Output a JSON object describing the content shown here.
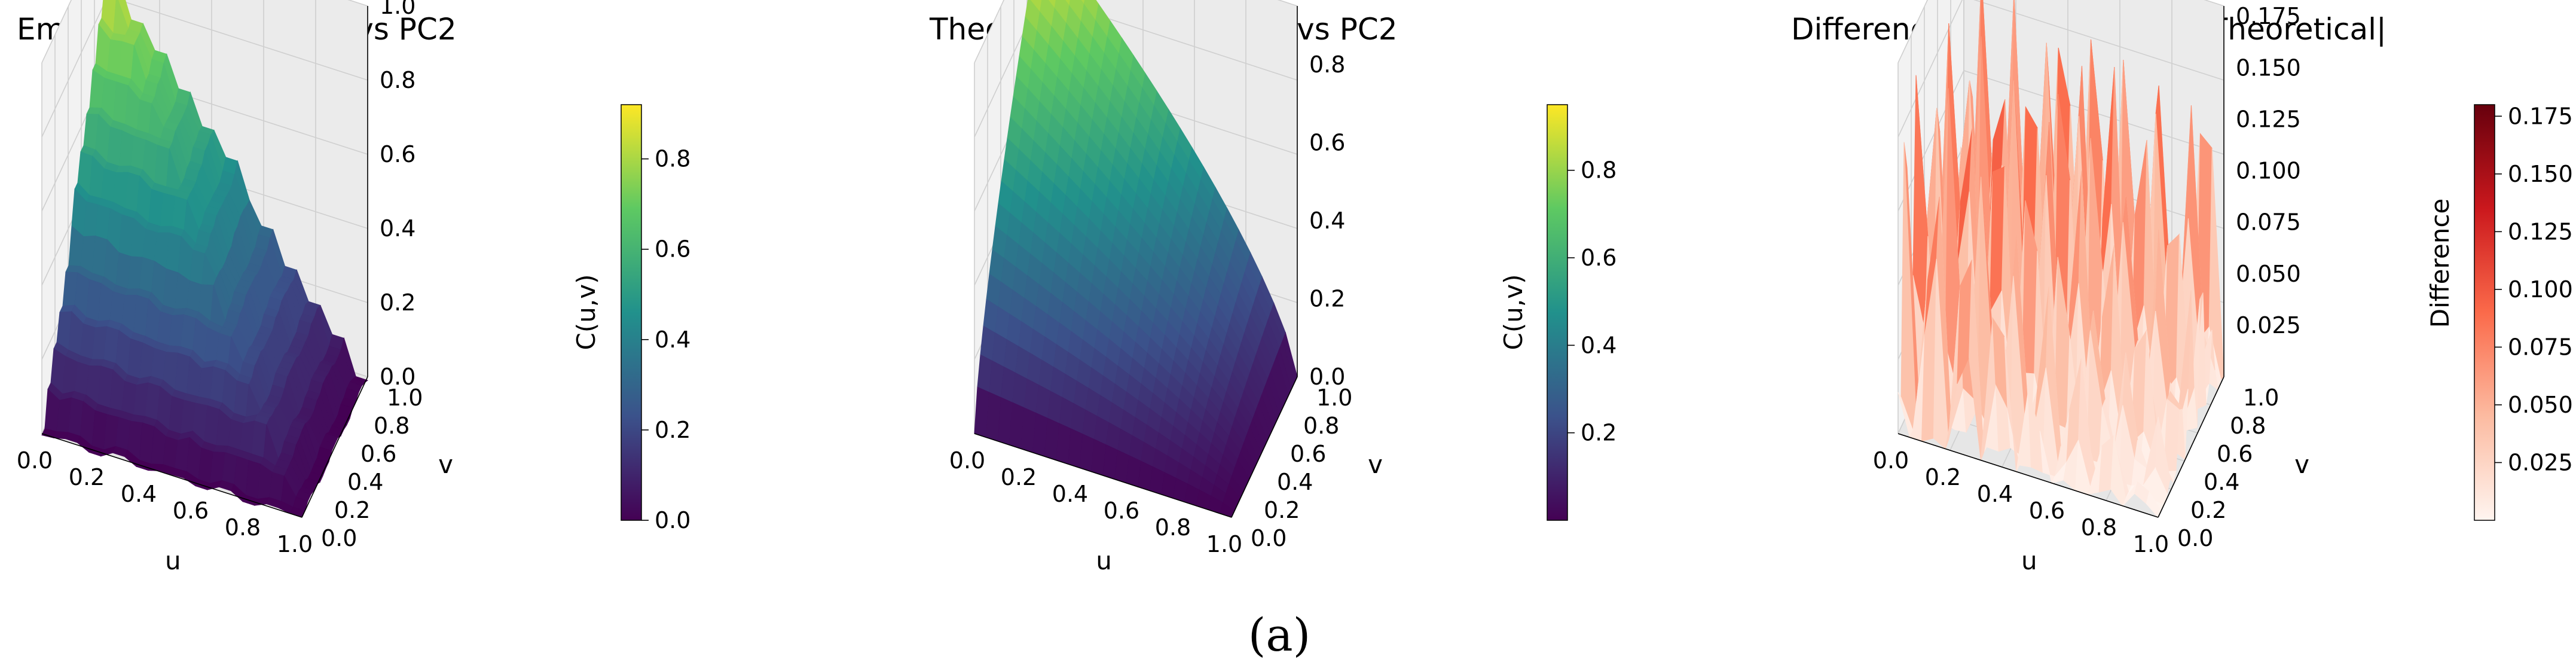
{
  "figure": {
    "caption": "(a)"
  },
  "chart_data": [
    {
      "type": "surface3d",
      "title": "Empirical Copula: PC1 vs PC2",
      "xlabel": "u",
      "ylabel": "v",
      "zlabel": "",
      "xlim": [
        0,
        1
      ],
      "ylim": [
        0,
        1
      ],
      "zlim": [
        0,
        1.0
      ],
      "x_ticks": [
        "0.0",
        "0.2",
        "0.4",
        "0.6",
        "0.8",
        "1.0"
      ],
      "y_ticks": [
        "0.0",
        "0.2",
        "0.4",
        "0.6",
        "0.8",
        "1.0"
      ],
      "z_ticks": [
        "0.0",
        "0.2",
        "0.4",
        "0.6",
        "0.8",
        "1.0"
      ],
      "colormap": "viridis",
      "colorbar": {
        "label": "C(u,v)",
        "range": [
          0,
          0.92
        ],
        "ticks": [
          "0.0",
          "0.2",
          "0.4",
          "0.6",
          "0.8"
        ]
      },
      "function": "empirical copula C(u,v) (stepwise, approx. min(u,v))",
      "grid": true
    },
    {
      "type": "surface3d",
      "title": "Theoretical Copula: PC1 vs PC2",
      "xlabel": "u",
      "ylabel": "v",
      "zlabel": "",
      "xlim": [
        0,
        1
      ],
      "ylim": [
        0,
        1
      ],
      "zlim": [
        0,
        0.95
      ],
      "x_ticks": [
        "0.0",
        "0.2",
        "0.4",
        "0.6",
        "0.8",
        "1.0"
      ],
      "y_ticks": [
        "0.0",
        "0.2",
        "0.4",
        "0.6",
        "0.8",
        "1.0"
      ],
      "z_ticks": [
        "0.0",
        "0.2",
        "0.4",
        "0.6",
        "0.8"
      ],
      "colormap": "viridis",
      "colorbar": {
        "label": "C(u,v)",
        "range": [
          0,
          0.95
        ],
        "ticks": [
          "0.2",
          "0.4",
          "0.6",
          "0.8"
        ]
      },
      "function": "smooth copula C(u,v)",
      "grid": true
    },
    {
      "type": "surface3d",
      "title": "Difference Plot: |Empirical - Theoretical|",
      "xlabel": "u",
      "ylabel": "v",
      "zlabel": "",
      "xlim": [
        0,
        1
      ],
      "ylim": [
        0,
        1
      ],
      "zlim": [
        0,
        0.18
      ],
      "x_ticks": [
        "0.0",
        "0.2",
        "0.4",
        "0.6",
        "0.8",
        "1.0"
      ],
      "y_ticks": [
        "0.0",
        "0.2",
        "0.4",
        "0.6",
        "0.8",
        "1.0"
      ],
      "z_ticks": [
        "0.025",
        "0.050",
        "0.075",
        "0.100",
        "0.125",
        "0.150",
        "0.175"
      ],
      "colormap": "reds",
      "colorbar": {
        "label": "Difference",
        "range": [
          0,
          0.18
        ],
        "ticks": [
          "0.025",
          "0.050",
          "0.075",
          "0.100",
          "0.125",
          "0.150",
          "0.175"
        ]
      },
      "function": "|Empirical - Theoretical|, spiky, max about 0.18",
      "grid": true
    }
  ]
}
